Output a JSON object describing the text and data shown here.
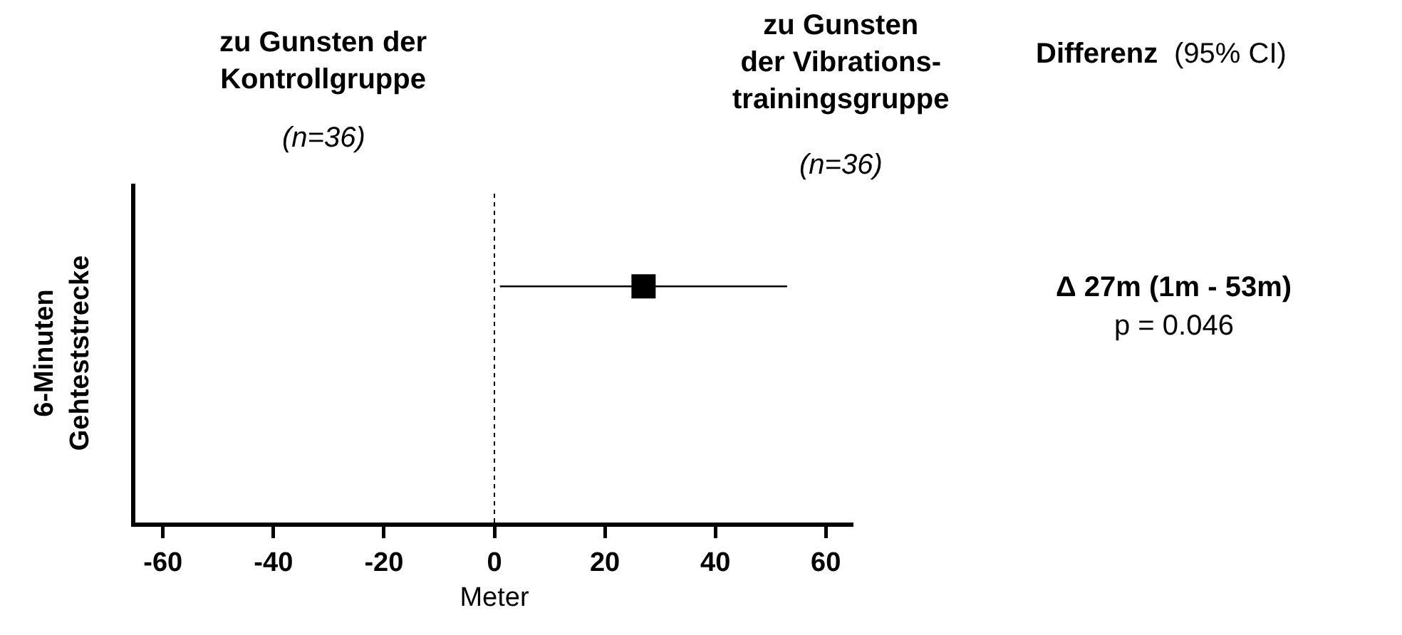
{
  "chart_data": {
    "type": "scatter",
    "orientation": "horizontal",
    "categories": [
      null
    ],
    "values": [
      27
    ],
    "errors": [
      [
        1,
        53
      ]
    ],
    "color": "#000000",
    "marker": "square",
    "xlabel": "Meter",
    "ylabel": "6-Minuten\nGehteststrecke",
    "xlim": [
      -65,
      65
    ],
    "xticks": [
      -60,
      -40,
      -20,
      0,
      20,
      40,
      60
    ],
    "tick_labels": "x",
    "grid": false,
    "ref_lines": [
      {
        "axis": "x",
        "value": 0,
        "line_style": "dotted",
        "color": "#000000"
      }
    ],
    "annotations": [
      "zu Gunsten der\nKontrollgruppe",
      "(n=36)",
      "zu Gunsten\nder Vibrations-\ntrainingsgruppe",
      "(n=36)",
      "Differenz",
      "(95% CI)",
      "Δ 27m (1m - 53m)",
      "p = 0.046"
    ]
  }
}
